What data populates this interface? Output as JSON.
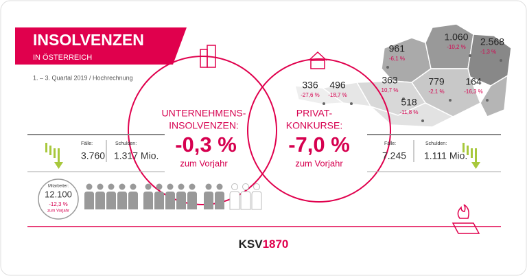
{
  "header": {
    "title": "INSOLVENZEN",
    "subtitle": "IN ÖSTERREICH",
    "note": "1. – 3. Quartal 2019 / Hochrechnung"
  },
  "companies": {
    "label_1": "UNTERNEHMENS-",
    "label_2": "INSOLVENZEN:",
    "change": "-0,3 %",
    "compare": "zum Vorjahr",
    "cases_label": "Fälle:",
    "cases": "3.760",
    "debt_label": "Schulden:",
    "debt": "1.317 Mio.",
    "employees_label": "Mitarbeiter:",
    "employees": "12.100",
    "employees_change": "-12,3 %",
    "employees_compare": "zum Vorjahr"
  },
  "private": {
    "label_1": "PRIVAT-",
    "label_2": "KONKURSE:",
    "change": "-7,0 %",
    "compare": "zum Vorjahr",
    "cases_label": "Fälle:",
    "cases": "7.245",
    "debt_label": "Schulden:",
    "debt": "1.111 Mio."
  },
  "map": [
    {
      "value": "961",
      "change": "-6,1 %"
    },
    {
      "value": "1.060",
      "change": "-10,2 %"
    },
    {
      "value": "2.568",
      "change": "-1,3 %"
    },
    {
      "value": "363",
      "change": "10,7 %"
    },
    {
      "value": "779",
      "change": "-2,1 %"
    },
    {
      "value": "164",
      "change": "-16,3 %"
    },
    {
      "value": "518",
      "change": "-11,8 %"
    },
    {
      "value": "336",
      "change": "-27,6 %"
    },
    {
      "value": "496",
      "change": "-18,7 %"
    }
  ],
  "footer": {
    "logo_a": "KSV",
    "logo_b": "1870"
  }
}
